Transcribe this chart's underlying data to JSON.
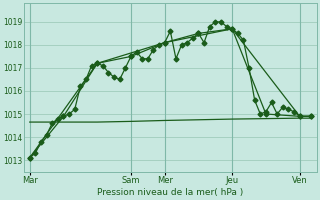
{
  "bg_color": "#c8e8e0",
  "grid_color": "#a0ccbc",
  "line_color": "#1a5c1a",
  "xlabel": "Pression niveau de la mer( hPa )",
  "ylim": [
    1012.5,
    1019.8
  ],
  "yticks": [
    1013,
    1014,
    1015,
    1016,
    1017,
    1018,
    1019
  ],
  "day_labels": [
    "Mar",
    "Sam",
    "Mer",
    "Jeu",
    "Ven"
  ],
  "day_positions": [
    0,
    18,
    24,
    36,
    48
  ],
  "series1_x": [
    0,
    1,
    2,
    3,
    4,
    5,
    6,
    7,
    8,
    9,
    10,
    11,
    12,
    13,
    14,
    15,
    16,
    17,
    18,
    19,
    20,
    21,
    22,
    23,
    24,
    25,
    26,
    27,
    28,
    29,
    30,
    31,
    32,
    33,
    34,
    35,
    36,
    37,
    38,
    39,
    40,
    41,
    42,
    43,
    44,
    45,
    46,
    47,
    48,
    50
  ],
  "series1_y": [
    1013.1,
    1013.3,
    1013.8,
    1014.1,
    1014.6,
    1014.8,
    1014.9,
    1015.0,
    1015.2,
    1016.2,
    1016.5,
    1017.1,
    1017.2,
    1017.1,
    1016.8,
    1016.6,
    1016.5,
    1017.0,
    1017.5,
    1017.7,
    1017.4,
    1017.4,
    1017.8,
    1018.0,
    1018.1,
    1018.6,
    1017.4,
    1018.0,
    1018.1,
    1018.3,
    1018.5,
    1018.1,
    1018.8,
    1019.0,
    1019.0,
    1018.8,
    1018.7,
    1018.5,
    1018.2,
    1017.0,
    1015.6,
    1015.0,
    1015.1,
    1015.5,
    1015.0,
    1015.3,
    1015.2,
    1015.1,
    1014.9,
    1014.9
  ],
  "series2_x": [
    0,
    6,
    12,
    18,
    24,
    30,
    36,
    42,
    48,
    50
  ],
  "series2_y": [
    1013.1,
    1014.9,
    1017.2,
    1017.5,
    1018.1,
    1018.5,
    1018.7,
    1015.0,
    1014.9,
    1014.9
  ],
  "series3_x": [
    0,
    12,
    24,
    36,
    48,
    50
  ],
  "series3_y": [
    1013.1,
    1017.2,
    1018.1,
    1018.7,
    1014.9,
    1014.9
  ],
  "series4_x": [
    0,
    6,
    12,
    18,
    24,
    30,
    36,
    42,
    48,
    50
  ],
  "series4_y": [
    1014.65,
    1014.65,
    1014.65,
    1014.68,
    1014.72,
    1014.75,
    1014.78,
    1014.8,
    1014.82,
    1014.82
  ]
}
